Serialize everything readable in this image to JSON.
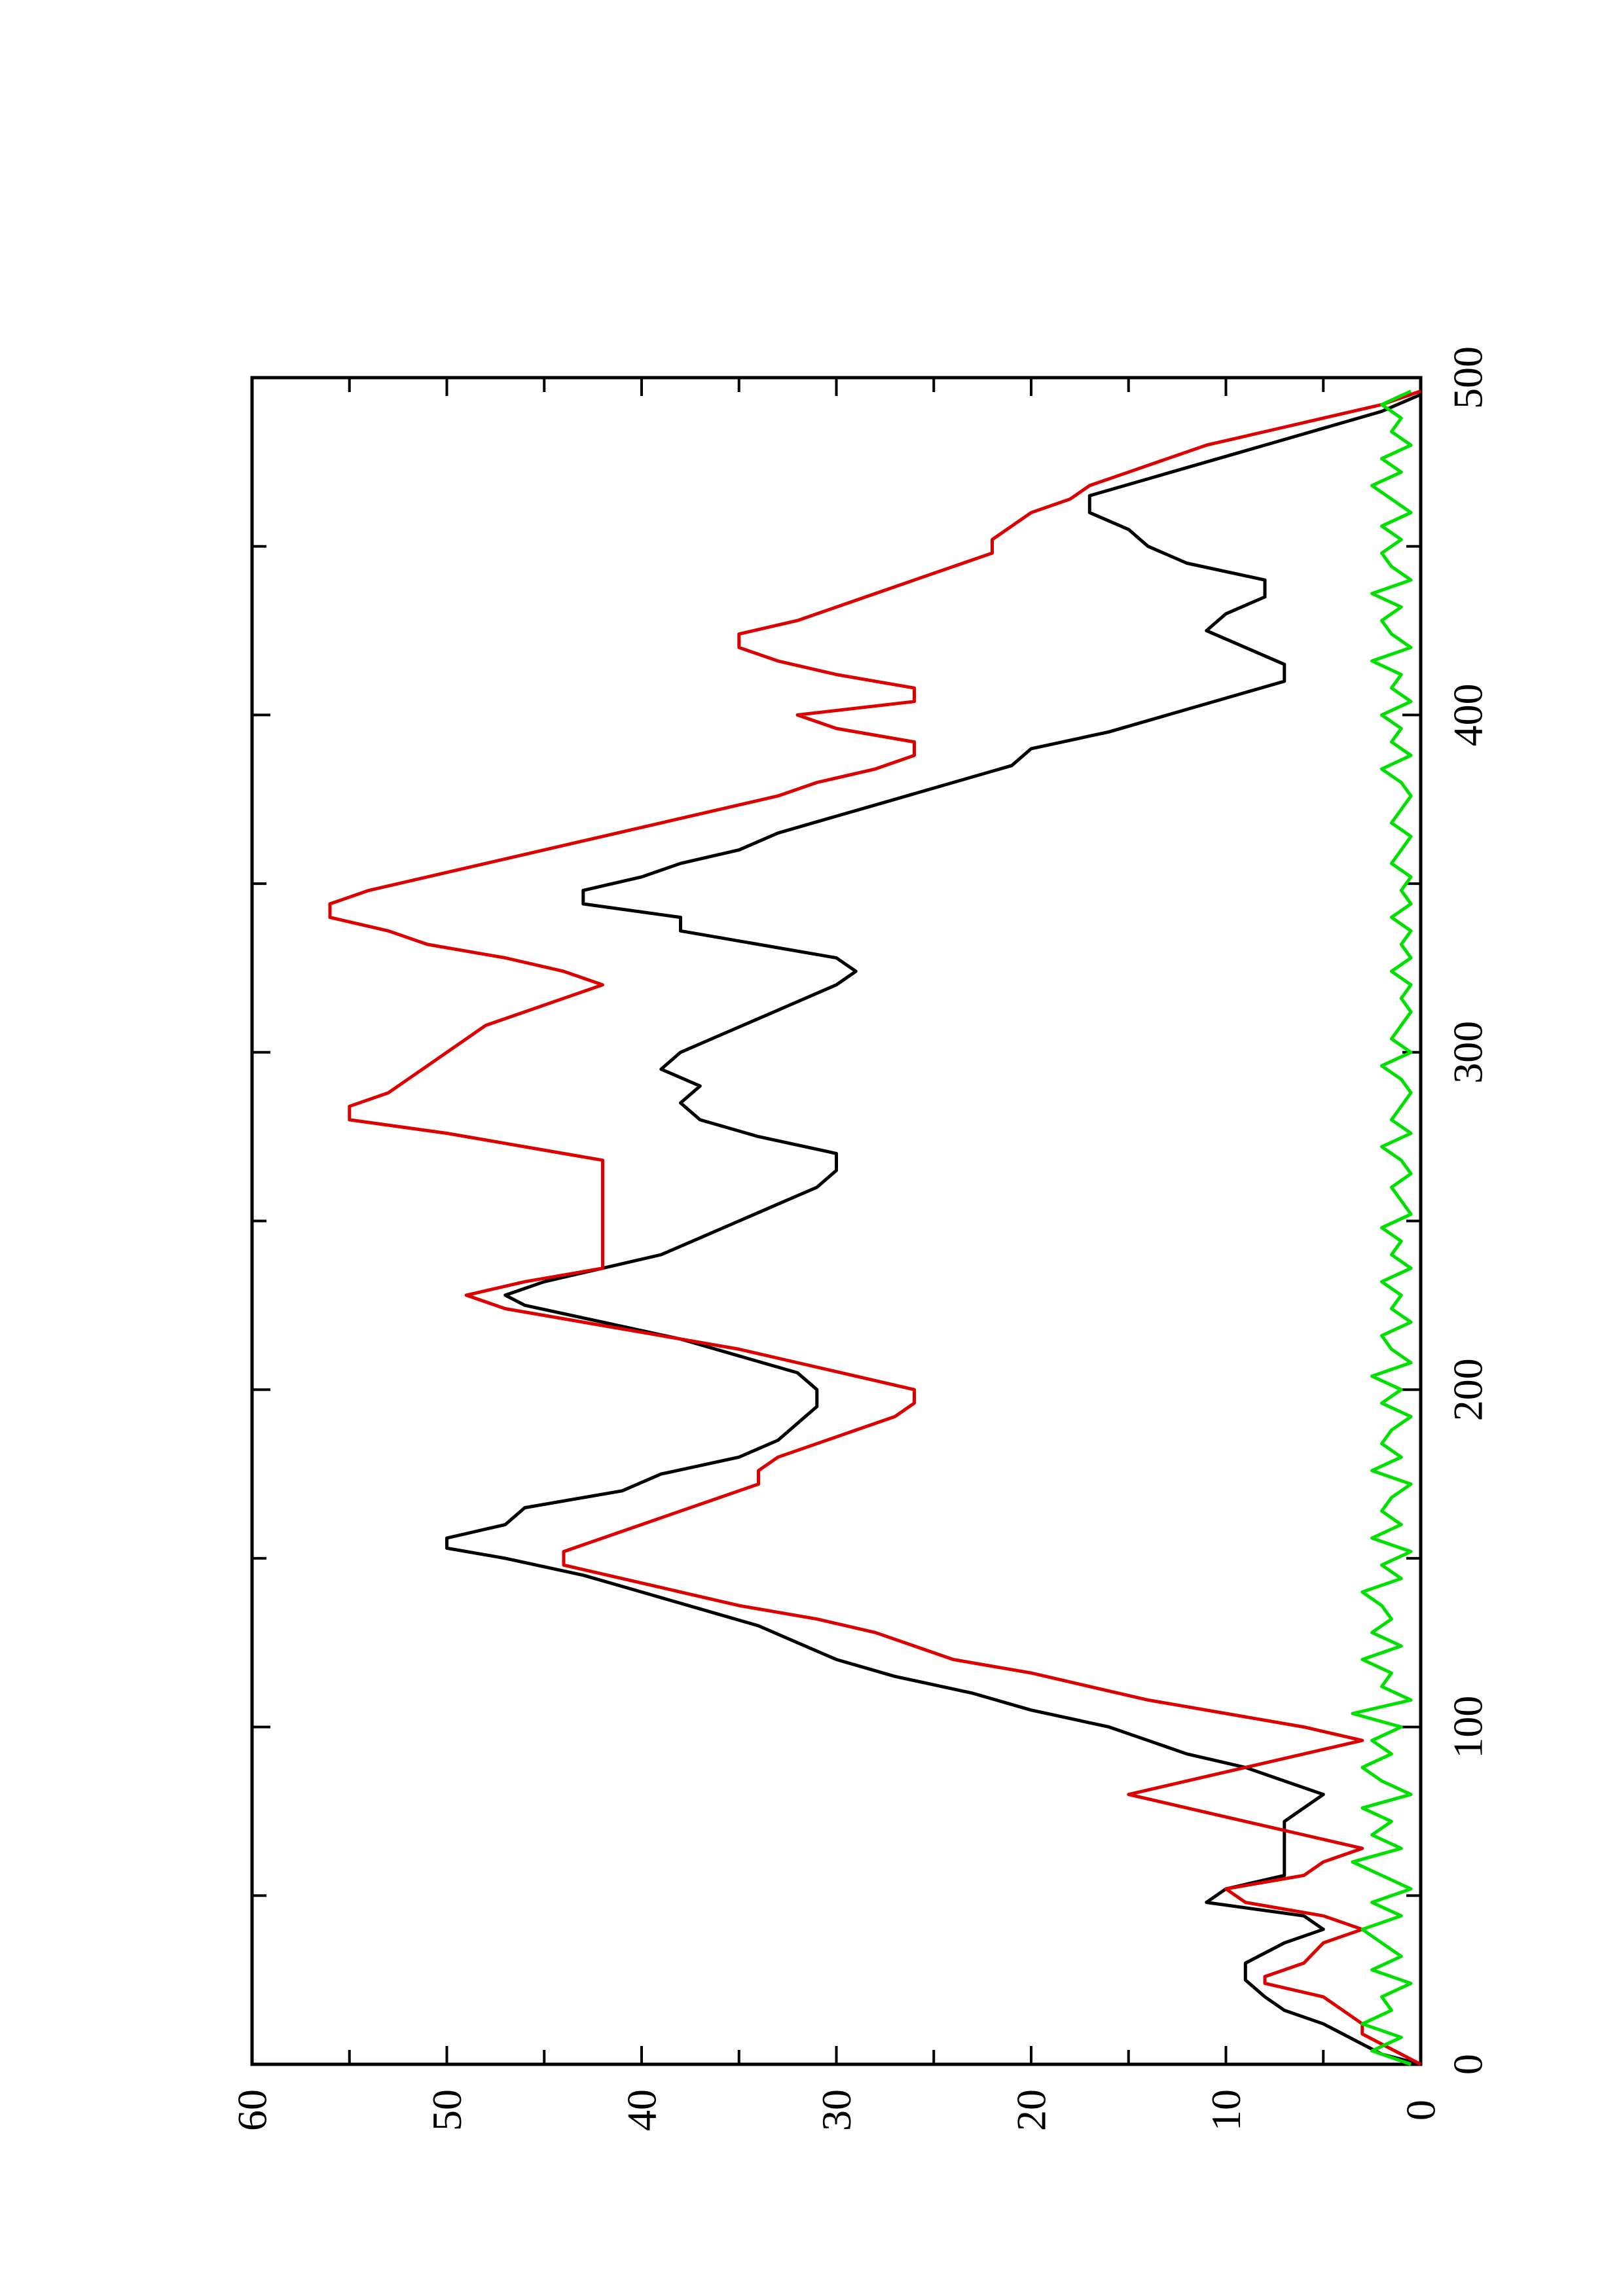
{
  "chart_data": {
    "type": "line",
    "title": "",
    "xlabel": "",
    "ylabel": "",
    "xlim": [
      0,
      500
    ],
    "ylim": [
      0,
      60
    ],
    "x_ticks": [
      "0",
      "100",
      "200",
      "300",
      "400",
      "500"
    ],
    "y_ticks": [
      "0",
      "10",
      "20",
      "30",
      "40",
      "50",
      "60"
    ],
    "orientation": "rotated 90 degrees counter-clockwise (x axis runs upward)",
    "grid": false,
    "legend": "none",
    "series": [
      {
        "color": "#000000",
        "x": [
          0,
          3,
          6,
          9,
          12,
          16,
          20,
          25,
          30,
          36,
          40,
          44,
          48,
          52,
          56,
          60,
          64,
          68,
          72,
          76,
          80,
          84,
          88,
          92,
          96,
          100,
          105,
          110,
          115,
          120,
          125,
          130,
          135,
          140,
          145,
          150,
          153,
          156,
          160,
          165,
          170,
          175,
          180,
          185,
          190,
          195,
          200,
          205,
          210,
          215,
          220,
          225,
          228,
          232,
          236,
          240,
          245,
          250,
          255,
          260,
          265,
          270,
          275,
          280,
          285,
          290,
          295,
          300,
          305,
          310,
          315,
          320,
          324,
          328,
          332,
          336,
          340,
          344,
          348,
          352,
          356,
          360,
          365,
          370,
          375,
          380,
          385,
          390,
          395,
          400,
          405,
          410,
          415,
          420,
          425,
          430,
          435,
          440,
          445,
          450,
          455,
          460,
          465,
          470,
          475,
          480,
          485,
          490,
          495
        ],
        "values": [
          0,
          2,
          3,
          4,
          5,
          7,
          8,
          9,
          9,
          7,
          5,
          6,
          11,
          10,
          7,
          7,
          7,
          7,
          7,
          6,
          5,
          7,
          9,
          12,
          14,
          16,
          20,
          23,
          27,
          30,
          32,
          34,
          37,
          40,
          43,
          47,
          50,
          50,
          47,
          46,
          41,
          39,
          35,
          33,
          32,
          31,
          31,
          32,
          35,
          38,
          42,
          46,
          47,
          45,
          42,
          39,
          37,
          35,
          33,
          31,
          30,
          30,
          34,
          37,
          38,
          37,
          39,
          38,
          36,
          34,
          32,
          30,
          29,
          30,
          34,
          38,
          38,
          43,
          43,
          40,
          38,
          35,
          33,
          30,
          27,
          24,
          21,
          20,
          16,
          13,
          10,
          7,
          7,
          9,
          11,
          10,
          8,
          8,
          12,
          14,
          15,
          17,
          17,
          14,
          11,
          8,
          5,
          2,
          0
        ]
      },
      {
        "color": "#dd0000",
        "x": [
          0,
          3,
          6,
          9,
          12,
          16,
          20,
          24,
          26,
          30,
          36,
          40,
          44,
          48,
          52,
          56,
          60,
          64,
          68,
          72,
          76,
          80,
          84,
          88,
          92,
          96,
          100,
          104,
          108,
          112,
          116,
          120,
          124,
          128,
          132,
          136,
          140,
          144,
          148,
          152,
          156,
          160,
          164,
          168,
          172,
          176,
          180,
          184,
          188,
          192,
          196,
          200,
          204,
          208,
          212,
          216,
          220,
          224,
          228,
          232,
          236,
          240,
          244,
          248,
          252,
          256,
          260,
          264,
          268,
          272,
          276,
          280,
          284,
          288,
          292,
          296,
          300,
          304,
          308,
          312,
          316,
          320,
          324,
          328,
          332,
          336,
          340,
          344,
          348,
          352,
          356,
          360,
          364,
          368,
          372,
          376,
          380,
          384,
          388,
          392,
          396,
          400,
          404,
          408,
          412,
          416,
          420,
          424,
          428,
          432,
          436,
          440,
          444,
          448,
          452,
          456,
          460,
          464,
          468,
          472,
          476,
          480,
          484,
          488,
          492,
          496
        ],
        "values": [
          0,
          1,
          2,
          3,
          3,
          4,
          5,
          8,
          8,
          6,
          5,
          3,
          5,
          9,
          10,
          6,
          5,
          3,
          6,
          9,
          12,
          15,
          12,
          9,
          6,
          3,
          6,
          10,
          14,
          17,
          20,
          24,
          26,
          28,
          31,
          35,
          38,
          41,
          44,
          44,
          42,
          40,
          38,
          36,
          34,
          34,
          33,
          31,
          29,
          27,
          26,
          26,
          29,
          32,
          35,
          39,
          43,
          47,
          49,
          46,
          42,
          42,
          42,
          42,
          42,
          42,
          42,
          42,
          42,
          46,
          50,
          55,
          55,
          53,
          52,
          51,
          50,
          49,
          48,
          46,
          44,
          42,
          44,
          47,
          51,
          53,
          56,
          56,
          54,
          51,
          48,
          45,
          42,
          39,
          36,
          33,
          31,
          28,
          26,
          26,
          30,
          32,
          26,
          26,
          30,
          33,
          35,
          35,
          32,
          30,
          28,
          26,
          24,
          22,
          22,
          21,
          20,
          18,
          17,
          15,
          13,
          11,
          8,
          5,
          2,
          0
        ]
      },
      {
        "color": "#00e000",
        "x": [
          0,
          4,
          8,
          12,
          16,
          20,
          24,
          28,
          32,
          36,
          40,
          44,
          48,
          52,
          56,
          60,
          64,
          68,
          72,
          76,
          80,
          84,
          88,
          92,
          96,
          100,
          104,
          108,
          112,
          116,
          120,
          124,
          128,
          132,
          136,
          140,
          144,
          148,
          152,
          156,
          160,
          164,
          168,
          172,
          176,
          180,
          184,
          188,
          192,
          196,
          200,
          204,
          208,
          212,
          216,
          220,
          224,
          228,
          232,
          236,
          240,
          244,
          248,
          252,
          256,
          260,
          264,
          268,
          272,
          276,
          280,
          284,
          288,
          292,
          296,
          300,
          304,
          308,
          312,
          316,
          320,
          324,
          328,
          332,
          336,
          340,
          344,
          348,
          352,
          356,
          360,
          364,
          368,
          372,
          376,
          380,
          384,
          388,
          392,
          396,
          400,
          404,
          408,
          412,
          416,
          420,
          424,
          428,
          432,
          436,
          440,
          444,
          448,
          452,
          456,
          460,
          464,
          468,
          472,
          476,
          480,
          484,
          488,
          492,
          496
        ],
        "values": [
          0.5,
          2.5,
          1.0,
          3.0,
          1.5,
          2.0,
          0.5,
          2.5,
          1.0,
          2.0,
          3.0,
          1.0,
          2.5,
          0.5,
          2.0,
          3.5,
          1.0,
          2.5,
          1.5,
          3.0,
          0.5,
          2.0,
          3.0,
          1.5,
          2.5,
          1.0,
          3.5,
          0.5,
          2.0,
          1.5,
          3.0,
          1.0,
          2.5,
          1.5,
          2.0,
          3.0,
          1.0,
          2.0,
          0.5,
          2.5,
          1.0,
          2.0,
          1.5,
          0.5,
          2.5,
          1.0,
          2.0,
          1.5,
          0.5,
          2.0,
          1.0,
          2.5,
          0.5,
          1.5,
          2.0,
          0.5,
          1.5,
          1.0,
          2.0,
          0.5,
          1.5,
          1.0,
          2.0,
          0.5,
          1.0,
          1.5,
          0.5,
          1.0,
          2.0,
          0.5,
          1.5,
          1.0,
          0.5,
          1.0,
          2.0,
          0.5,
          1.5,
          1.0,
          0.5,
          1.0,
          0.5,
          1.5,
          0.5,
          1.0,
          0.5,
          1.5,
          0.5,
          1.0,
          0.5,
          1.5,
          1.0,
          0.5,
          1.5,
          1.0,
          0.5,
          1.0,
          2.0,
          0.5,
          1.5,
          1.0,
          2.0,
          0.5,
          1.5,
          1.0,
          2.5,
          0.5,
          1.5,
          2.0,
          1.0,
          2.5,
          0.5,
          1.5,
          2.0,
          1.0,
          2.0,
          0.5,
          1.5,
          2.5,
          1.0,
          2.0,
          0.5,
          1.5,
          1.0,
          2.0,
          0.5
        ]
      }
    ]
  }
}
